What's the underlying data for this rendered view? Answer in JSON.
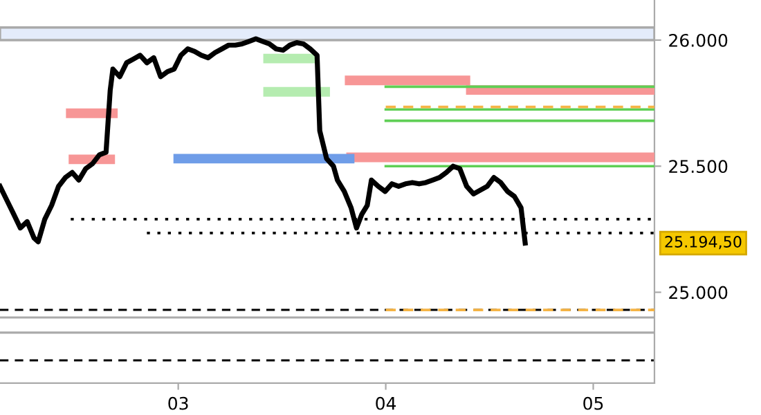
{
  "chart_data": {
    "type": "line",
    "xlim": [
      2.141,
      5.295
    ],
    "xticks": [
      {
        "value": 3,
        "label": "03"
      },
      {
        "value": 4,
        "label": "04"
      },
      {
        "value": 5,
        "label": "05"
      }
    ],
    "ylim": [
      24640,
      26159
    ],
    "yticks": [
      {
        "value": 25000,
        "label": "25.000"
      },
      {
        "value": 25500,
        "label": "25.500"
      },
      {
        "value": 26000,
        "label": "26.000"
      }
    ],
    "grid": false,
    "marker": "none",
    "series": [
      {
        "color": "#000000",
        "line_style": "solid",
        "x": [
          2.141,
          2.174,
          2.207,
          2.239,
          2.272,
          2.305,
          2.325,
          2.357,
          2.39,
          2.423,
          2.456,
          2.489,
          2.521,
          2.554,
          2.587,
          2.62,
          2.652,
          2.672,
          2.685,
          2.718,
          2.751,
          2.784,
          2.816,
          2.849,
          2.882,
          2.915,
          2.948,
          2.98,
          3.013,
          3.046,
          3.079,
          3.111,
          3.144,
          3.177,
          3.21,
          3.243,
          3.275,
          3.308,
          3.341,
          3.374,
          3.407,
          3.439,
          3.472,
          3.505,
          3.538,
          3.571,
          3.603,
          3.636,
          3.669,
          3.682,
          3.715,
          3.748,
          3.767,
          3.8,
          3.833,
          3.859,
          3.885,
          3.911,
          3.931,
          3.964,
          3.997,
          4.03,
          4.062,
          4.095,
          4.128,
          4.161,
          4.193,
          4.226,
          4.259,
          4.292,
          4.325,
          4.357,
          4.39,
          4.423,
          4.456,
          4.489,
          4.521,
          4.554,
          4.587,
          4.62,
          4.652,
          4.672
        ],
        "values": [
          25420,
          25365,
          25310,
          25255,
          25280,
          25215,
          25200,
          25290,
          25345,
          25420,
          25455,
          25475,
          25445,
          25490,
          25510,
          25545,
          25555,
          25800,
          25885,
          25855,
          25910,
          25925,
          25940,
          25910,
          25930,
          25855,
          25875,
          25885,
          25940,
          25965,
          25955,
          25940,
          25930,
          25950,
          25965,
          25980,
          25980,
          25985,
          25995,
          26005,
          25995,
          25985,
          25965,
          25960,
          25980,
          25990,
          25985,
          25965,
          25940,
          25640,
          25530,
          25500,
          25445,
          25400,
          25335,
          25255,
          25310,
          25345,
          25445,
          25420,
          25400,
          25430,
          25420,
          25430,
          25435,
          25430,
          25435,
          25445,
          25455,
          25475,
          25500,
          25490,
          25420,
          25390,
          25405,
          25420,
          25455,
          25435,
          25400,
          25380,
          25335,
          25195
        ]
      },
      {
        "color": "#f79696",
        "x": [
          2.482,
          2.685
        ],
        "values": [
          25710,
          25710
        ]
      },
      {
        "color": "#f79696",
        "x": [
          2.495,
          2.672
        ],
        "values": [
          25527,
          25527
        ]
      },
      {
        "color": "#f79696",
        "x": [
          3.826,
          4.384
        ],
        "values": [
          25840,
          25840
        ]
      },
      {
        "color": "#f79696",
        "x": [
          4.41,
          5.295
        ],
        "values": [
          25802,
          25802
        ]
      },
      {
        "color": "#f79696",
        "x": [
          3.833,
          5.295
        ],
        "values": [
          25535,
          25535
        ]
      },
      {
        "color": "#b5ecb0",
        "x": [
          3.433,
          3.636
        ],
        "values": [
          25927,
          25927
        ]
      },
      {
        "color": "#b5ecb0",
        "x": [
          3.433,
          3.708
        ],
        "values": [
          25795,
          25795
        ]
      },
      {
        "color": "#6f9de8",
        "x": [
          3.0,
          3.826
        ],
        "values": [
          25530,
          25530
        ]
      },
      {
        "color": "#5fcf55",
        "line_style": "solid",
        "x": [
          4.0,
          5.295
        ],
        "values": [
          25815,
          25815
        ]
      },
      {
        "color": "#5fcf55",
        "line_style": "solid",
        "x": [
          4.0,
          5.295
        ],
        "values": [
          25725,
          25725
        ]
      },
      {
        "color": "#5fcf55",
        "line_style": "solid",
        "x": [
          4.0,
          5.295
        ],
        "values": [
          25680,
          25680
        ]
      },
      {
        "color": "#5fcf55",
        "line_style": "solid",
        "x": [
          4.0,
          5.295
        ],
        "values": [
          25500,
          25500
        ]
      },
      {
        "color": "#f5b445",
        "line_style": "dashed",
        "x": [
          4.0,
          5.295
        ],
        "values": [
          25735,
          25735
        ]
      },
      {
        "color": "#f5b445",
        "line_style": "dashed",
        "x": [
          4.0,
          5.295
        ],
        "values": [
          24930,
          24930
        ]
      },
      {
        "color": "#000000",
        "line_style": "dotted",
        "x": [
          2.482,
          5.295
        ],
        "values": [
          25290,
          25290
        ]
      },
      {
        "color": "#000000",
        "line_style": "dotted",
        "x": [
          2.849,
          5.295
        ],
        "values": [
          25235,
          25235
        ]
      }
    ],
    "ref_lines": [
      {
        "axis": "y",
        "value": 24930,
        "color": "#000000",
        "line_style": "dashed"
      },
      {
        "axis": "y",
        "value": 24900,
        "color": "#aaaaaa",
        "line_style": "solid"
      },
      {
        "axis": "y",
        "value": 24840,
        "color": "#aaaaaa",
        "line_style": "solid"
      },
      {
        "axis": "y",
        "value": 24730,
        "color": "#000000",
        "line_style": "dashed"
      }
    ],
    "bands": [
      {
        "axis": "y",
        "from": 26000,
        "to": 26050,
        "color": "#e4ecfb"
      }
    ],
    "annotations": [
      "25.194,50"
    ]
  }
}
